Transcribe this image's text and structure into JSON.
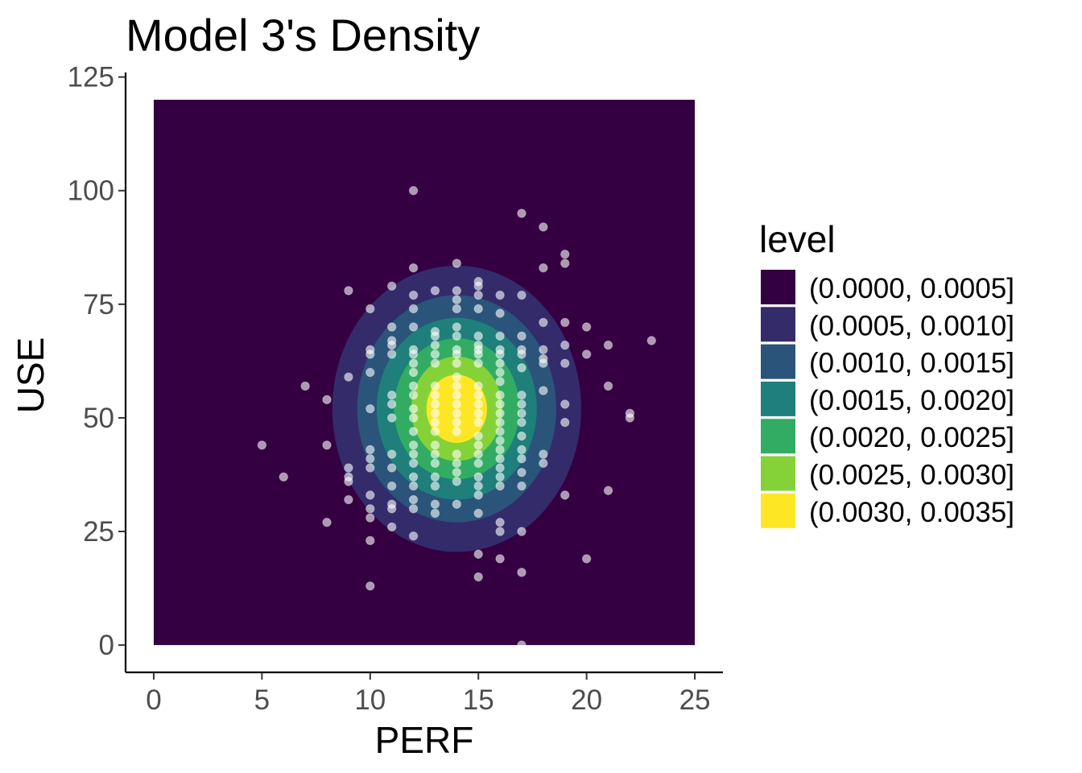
{
  "chart_data": {
    "type": "contour",
    "title": "Model 3's Density",
    "xlabel": "PERF",
    "ylabel": "USE",
    "xlim": [
      -1.3,
      26.3
    ],
    "ylim": [
      -6,
      126
    ],
    "x_ticks": [
      0,
      5,
      10,
      15,
      20,
      25
    ],
    "y_ticks": [
      0,
      25,
      50,
      75,
      100,
      125
    ],
    "grid": false,
    "legend": {
      "title": "level",
      "position": "right",
      "entries": [
        {
          "label": "(0.0000, 0.0005]",
          "color": "#340042"
        },
        {
          "label": "(0.0005, 0.0010]",
          "color": "#342b6b"
        },
        {
          "label": "(0.0010, 0.0015]",
          "color": "#2a5479"
        },
        {
          "label": "(0.0015, 0.0020]",
          "color": "#1f7f7a"
        },
        {
          "label": "(0.0020, 0.0025]",
          "color": "#33ac63"
        },
        {
          "label": "(0.0025, 0.0030]",
          "color": "#84d238"
        },
        {
          "label": "(0.0030, 0.0035]",
          "color": "#fde725"
        }
      ]
    },
    "density_grid": {
      "x_range": [
        0,
        25
      ],
      "y_range": [
        0,
        120
      ]
    },
    "contour_levels": [
      {
        "level": "(0.0005, 0.0010]",
        "cx": 14.0,
        "cy": 52,
        "rx": 5.75,
        "ry": 31.5
      },
      {
        "level": "(0.0010, 0.0015]",
        "cx": 14.0,
        "cy": 52,
        "rx": 4.6,
        "ry": 25.0
      },
      {
        "level": "(0.0015, 0.0020]",
        "cx": 14.0,
        "cy": 52,
        "rx": 3.7,
        "ry": 20.0
      },
      {
        "level": "(0.0020, 0.0025]",
        "cx": 14.0,
        "cy": 52,
        "rx": 2.9,
        "ry": 15.5
      },
      {
        "level": "(0.0025, 0.0030]",
        "cx": 14.0,
        "cy": 52,
        "rx": 2.1,
        "ry": 11.5
      },
      {
        "level": "(0.0030, 0.0035]",
        "cx": 14.0,
        "cy": 52,
        "rx": 1.4,
        "ry": 7.5
      }
    ],
    "points": [
      [
        12,
        100
      ],
      [
        17,
        95
      ],
      [
        18,
        92
      ],
      [
        19,
        86
      ],
      [
        19,
        84
      ],
      [
        18,
        83
      ],
      [
        12,
        83
      ],
      [
        14,
        84
      ],
      [
        11,
        79
      ],
      [
        9,
        78
      ],
      [
        12,
        77
      ],
      [
        13,
        78
      ],
      [
        14,
        78
      ],
      [
        14,
        76
      ],
      [
        15,
        80
      ],
      [
        15,
        79
      ],
      [
        15,
        77
      ],
      [
        16,
        77
      ],
      [
        17,
        77
      ],
      [
        12,
        74
      ],
      [
        14,
        74
      ],
      [
        15,
        74
      ],
      [
        10,
        74
      ],
      [
        16,
        73
      ],
      [
        18,
        71
      ],
      [
        19,
        71
      ],
      [
        20,
        70
      ],
      [
        23,
        67
      ],
      [
        21,
        66
      ],
      [
        19,
        66
      ],
      [
        17,
        68
      ],
      [
        16,
        68
      ],
      [
        15,
        68
      ],
      [
        14,
        70
      ],
      [
        14,
        68
      ],
      [
        13,
        69
      ],
      [
        13,
        68
      ],
      [
        12,
        70
      ],
      [
        11,
        70
      ],
      [
        11,
        67
      ],
      [
        11,
        66
      ],
      [
        11,
        64
      ],
      [
        10,
        65
      ],
      [
        10,
        64
      ],
      [
        12,
        65
      ],
      [
        12,
        64
      ],
      [
        13,
        66
      ],
      [
        13,
        64
      ],
      [
        14,
        65
      ],
      [
        14,
        64
      ],
      [
        15,
        66
      ],
      [
        15,
        65
      ],
      [
        15,
        64
      ],
      [
        16,
        65
      ],
      [
        16,
        64
      ],
      [
        17,
        65
      ],
      [
        17,
        64
      ],
      [
        18,
        65
      ],
      [
        18,
        63
      ],
      [
        18,
        62
      ],
      [
        19,
        62
      ],
      [
        20,
        64
      ],
      [
        9,
        59
      ],
      [
        10,
        60
      ],
      [
        12,
        62
      ],
      [
        12,
        60
      ],
      [
        13,
        62
      ],
      [
        14,
        62
      ],
      [
        15,
        62
      ],
      [
        16,
        62
      ],
      [
        16,
        60
      ],
      [
        17,
        61
      ],
      [
        7,
        57
      ],
      [
        21,
        57
      ],
      [
        11,
        55
      ],
      [
        11,
        53
      ],
      [
        11,
        50
      ],
      [
        12,
        57
      ],
      [
        12,
        55
      ],
      [
        12,
        52
      ],
      [
        12,
        50
      ],
      [
        13,
        57
      ],
      [
        13,
        55
      ],
      [
        13,
        53
      ],
      [
        13,
        51
      ],
      [
        13,
        49
      ],
      [
        14,
        59
      ],
      [
        14,
        57
      ],
      [
        14,
        55
      ],
      [
        14,
        53
      ],
      [
        14,
        51
      ],
      [
        14,
        49
      ],
      [
        14,
        47
      ],
      [
        15,
        57
      ],
      [
        15,
        55
      ],
      [
        15,
        53
      ],
      [
        15,
        51
      ],
      [
        15,
        49
      ],
      [
        16,
        58
      ],
      [
        16,
        55
      ],
      [
        16,
        53
      ],
      [
        16,
        51
      ],
      [
        16,
        49
      ],
      [
        17,
        55
      ],
      [
        17,
        53
      ],
      [
        17,
        51
      ],
      [
        17,
        49
      ],
      [
        19,
        53
      ],
      [
        19,
        49
      ],
      [
        22,
        51
      ],
      [
        22,
        50
      ],
      [
        8,
        54
      ],
      [
        10,
        52
      ],
      [
        18,
        56
      ],
      [
        12,
        47
      ],
      [
        13,
        47
      ],
      [
        15,
        46
      ],
      [
        15,
        44
      ],
      [
        16,
        47
      ],
      [
        16,
        45
      ],
      [
        17,
        46
      ],
      [
        10,
        43
      ],
      [
        10,
        41
      ],
      [
        10,
        39
      ],
      [
        11,
        42
      ],
      [
        11,
        39
      ],
      [
        12,
        44
      ],
      [
        12,
        42
      ],
      [
        12,
        40
      ],
      [
        13,
        44
      ],
      [
        13,
        42
      ],
      [
        13,
        40
      ],
      [
        14,
        42
      ],
      [
        14,
        40
      ],
      [
        15,
        42
      ],
      [
        15,
        40
      ],
      [
        16,
        43
      ],
      [
        16,
        41
      ],
      [
        16,
        39
      ],
      [
        17,
        43
      ],
      [
        17,
        41
      ],
      [
        17,
        38
      ],
      [
        18,
        42
      ],
      [
        18,
        40
      ],
      [
        8,
        44
      ],
      [
        5,
        44
      ],
      [
        9,
        39
      ],
      [
        9,
        37
      ],
      [
        9,
        36
      ],
      [
        6,
        37
      ],
      [
        11,
        35
      ],
      [
        12,
        37
      ],
      [
        12,
        35
      ],
      [
        13,
        37
      ],
      [
        13,
        35
      ],
      [
        14,
        38
      ],
      [
        14,
        36
      ],
      [
        15,
        37
      ],
      [
        15,
        35
      ],
      [
        16,
        37
      ],
      [
        16,
        35
      ],
      [
        17,
        35
      ],
      [
        19,
        33
      ],
      [
        21,
        34
      ],
      [
        9,
        32
      ],
      [
        10,
        33
      ],
      [
        11,
        31
      ],
      [
        11,
        30
      ],
      [
        12,
        32
      ],
      [
        12,
        30
      ],
      [
        13,
        31
      ],
      [
        13,
        29
      ],
      [
        14,
        31
      ],
      [
        15,
        33
      ],
      [
        15,
        29
      ],
      [
        10,
        30
      ],
      [
        10,
        28
      ],
      [
        11,
        26
      ],
      [
        16,
        27
      ],
      [
        16,
        25
      ],
      [
        17,
        25
      ],
      [
        8,
        27
      ],
      [
        12,
        24
      ],
      [
        10,
        23
      ],
      [
        15,
        20
      ],
      [
        16,
        19
      ],
      [
        20,
        19
      ],
      [
        17,
        16
      ],
      [
        15,
        15
      ],
      [
        10,
        13
      ],
      [
        17,
        0
      ]
    ]
  }
}
